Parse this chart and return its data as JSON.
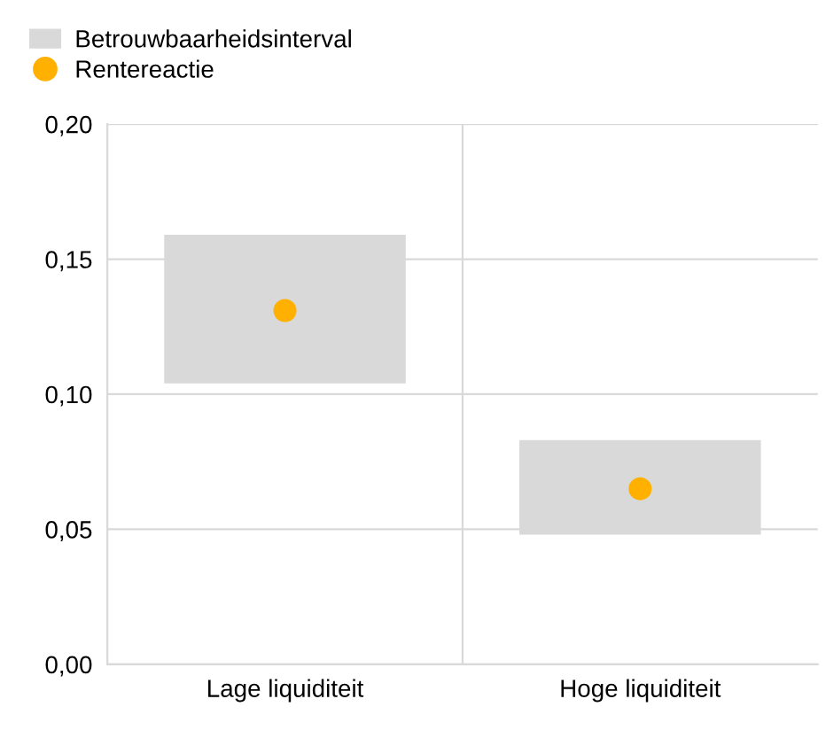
{
  "chart_data": {
    "type": "bar",
    "categories": [
      "Lage liquiditeit",
      "Hoge liquiditeit"
    ],
    "series": [
      {
        "name": "Betrouwbaarheidsinterval",
        "color": "#d9d9d9",
        "values": [
          0.055,
          0.035
        ],
        "base": [
          0.104,
          0.048
        ]
      },
      {
        "name": "Rentereactie",
        "type": "scatter",
        "color": "#ffb000",
        "values": [
          0.131,
          0.065
        ],
        "x": [
          "Lage liquiditeit",
          "Hoge liquiditeit"
        ]
      }
    ],
    "ylim": [
      0,
      0.2
    ],
    "yticks": [
      {
        "value": 0,
        "label": "0,00"
      },
      {
        "value": 0.05,
        "label": "0,05"
      },
      {
        "value": 0.1,
        "label": "0,10"
      },
      {
        "value": 0.15,
        "label": "0,15"
      },
      {
        "value": 0.2,
        "label": "0,20"
      }
    ],
    "grid": true,
    "legend": "top left",
    "marker": "circle"
  }
}
